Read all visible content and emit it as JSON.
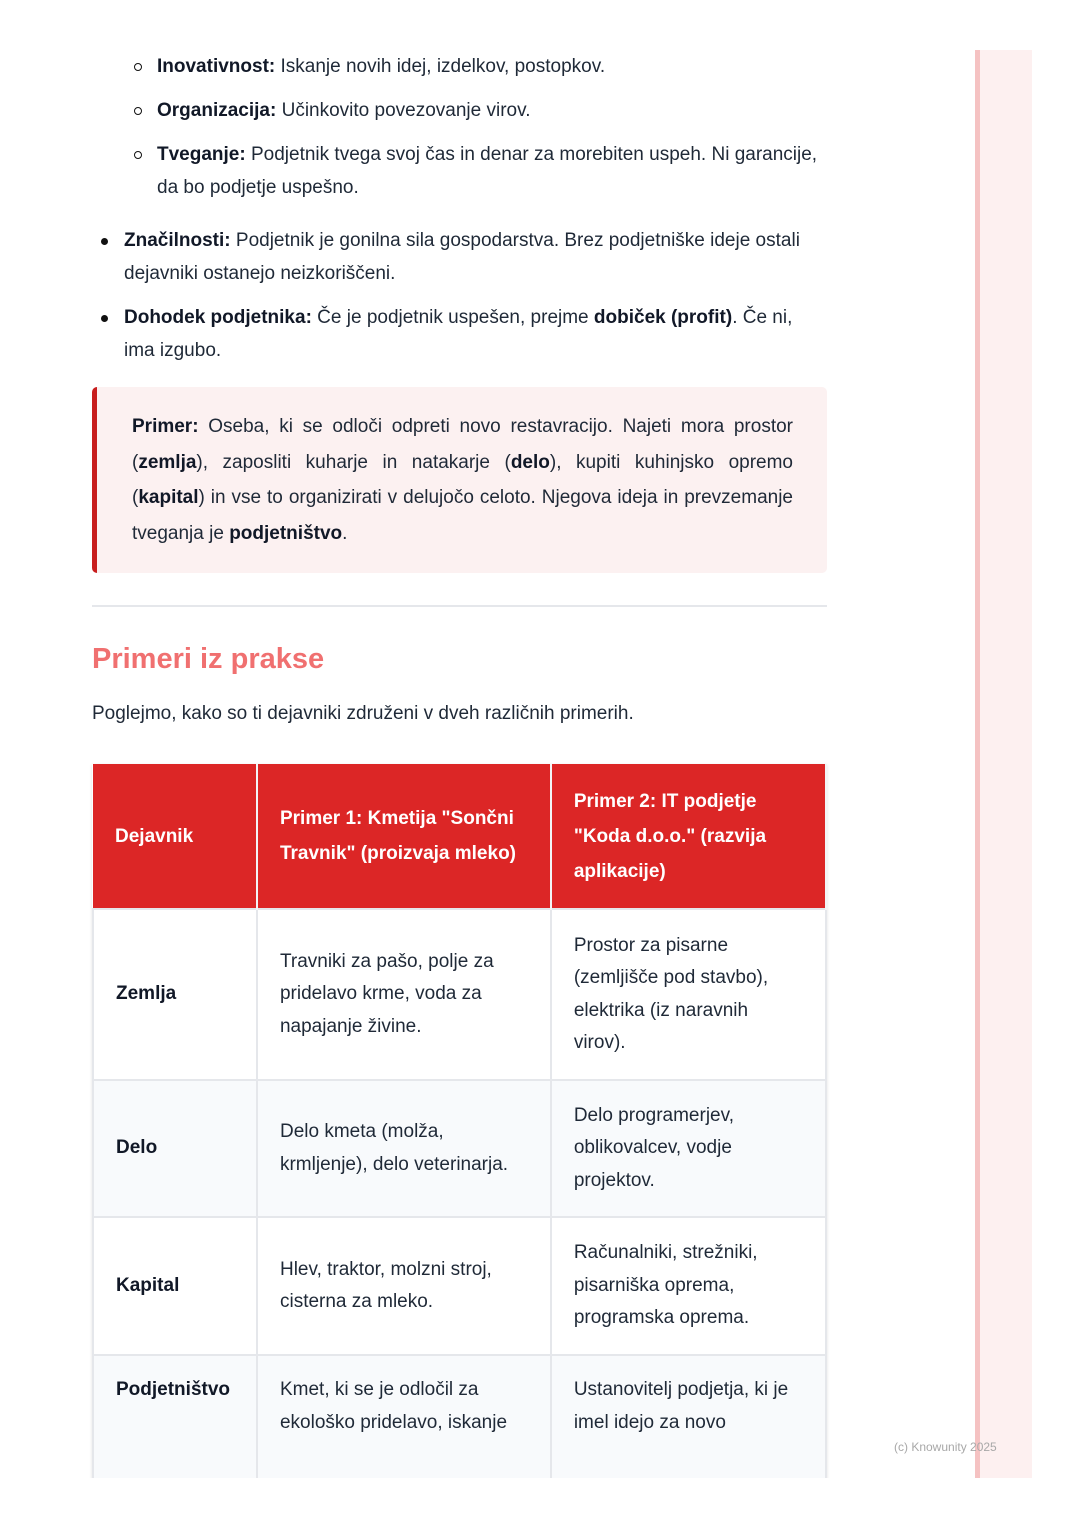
{
  "sub_bullets": [
    {
      "term": "Inovativnost:",
      "text": " Iskanje novih idej, izdelkov, postopkov."
    },
    {
      "term": "Organizacija:",
      "text": " Učinkovito povezovanje virov."
    },
    {
      "term": "Tveganje:",
      "text": " Podjetnik tvega svoj čas in denar za morebiten uspeh. Ni garancije, da bo podjetje uspešno."
    }
  ],
  "bullets": [
    {
      "term": "Značilnosti:",
      "text": " Podjetnik je gonilna sila gospodarstva. Brez podjetniške ideje ostali dejavniki ostanejo neizkoriščeni."
    },
    {
      "term": "Dohodek podjetnika:",
      "text": " Če je podjetnik uspešen, prejme ",
      "bold2": "dobiček (profit)",
      "text2": ". Če ni, ima izgubo."
    }
  ],
  "callout": {
    "label": "Primer:",
    "t1": " Oseba, ki se odloči odpreti novo restavracijo. Najeti mora prostor (",
    "b1": "zemlja",
    "t2": "), zaposliti kuharje in natakarje (",
    "b2": "delo",
    "t3": "), kupiti kuhinjsko opremo (",
    "b3": "kapital",
    "t4": ") in vse to organizirati v delujočo celoto. Njegova ideja in prevzemanje tveganja je ",
    "b4": "podjetništvo",
    "t5": "."
  },
  "section": {
    "title": "Primeri iz prakse",
    "intro": "Poglejmo, kako so ti dejavniki združeni v dveh različnih primerih."
  },
  "table": {
    "headers": [
      "Dejavnik",
      "Primer 1: Kmetija \"Sončni Travnik\" (proizvaja mleko)",
      "Primer 2: IT podjetje \"Koda d.o.o.\" (razvija aplikacije)"
    ],
    "rows": [
      [
        "Zemlja",
        "Travniki za pašo, polje za pridelavo krme, voda za napajanje živine.",
        "Prostor za pisarne (zemljišče pod stavbo), elektrika (iz naravnih virov)."
      ],
      [
        "Delo",
        "Delo kmeta (molža, krmljenje), delo veterinarja.",
        "Delo programerjev, oblikovalcev, vodje projektov."
      ],
      [
        "Kapital",
        "Hlev, traktor, molzni stroj, cisterna za mleko.",
        "Računalniki, strežniki, pisarniška oprema, programska oprema."
      ],
      [
        "Podjetništvo",
        "Kmet, ki se je odločil za ekološko pridelavo, iskanje",
        "Ustanovitelj podjetja, ki je imel idejo za novo"
      ]
    ]
  },
  "watermark": "(c) Knowunity 2025",
  "colors": {
    "accent": "#dc2626",
    "heading": "#f07070",
    "callout_bg": "#fcf1f1"
  }
}
